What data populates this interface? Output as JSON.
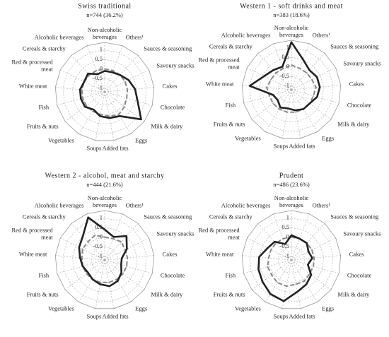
{
  "chart_data": [
    {
      "type": "radar",
      "title": "Swiss traditional",
      "subtitle": "n=744 (36.2%)",
      "categories": [
        "Non-alcoholic\nbeverages",
        "Others¹",
        "Sauces & seasoning",
        "Savoury snacks",
        "Cakes",
        "Chocolate",
        "Milk & dairy",
        "Eggs",
        "Added fats",
        "Soups",
        "Vegetables",
        "Fruits & nuts",
        "Fish",
        "White meat",
        "Red & processed\nmeat",
        "Cereals & starchy",
        "Alcoholic beverages"
      ],
      "series": [
        {
          "color": "#888888",
          "dashed": true,
          "values": [
            0,
            0,
            0,
            0,
            0,
            0,
            0.1,
            0.2,
            0.1,
            0,
            0,
            0,
            0,
            0,
            0,
            0,
            0
          ]
        },
        {
          "color": "#222222",
          "values": [
            -0.1,
            -0.1,
            0,
            0.2,
            0.4,
            0.6,
            1.2,
            0.3,
            0.2,
            0.1,
            -0.1,
            0.1,
            0.1,
            0.1,
            0,
            0.1,
            -0.2
          ]
        }
      ],
      "rlim": [
        -1.2,
        1.4
      ],
      "rticks": [
        1,
        0.5,
        0,
        -0.5,
        -1
      ]
    },
    {
      "type": "radar",
      "title": "Western 1 - soft drinks and meat",
      "subtitle": "n=383 (18.6%)",
      "categories": [
        "Non-alcoholic\nbeverages",
        "Others¹",
        "Sauces & seasoning",
        "Savoury snacks",
        "Cakes",
        "Chocolate",
        "Milk & dairy",
        "Eggs",
        "Added fats",
        "Soups",
        "Vegetables",
        "Fruits & nuts",
        "Fish",
        "White meat",
        "Red & processed\nmeat",
        "Cereals & starchy",
        "Alcoholic beverages"
      ],
      "series": [
        {
          "color": "#888888",
          "dashed": true,
          "values": [
            0.1,
            0,
            0,
            0,
            0.1,
            0,
            0,
            0,
            0,
            0,
            0,
            0,
            0,
            0.1,
            0,
            0,
            0
          ]
        },
        {
          "color": "#222222",
          "values": [
            1.3,
            0.5,
            0.2,
            0.3,
            0.3,
            0.2,
            0,
            0,
            -0.1,
            -0.2,
            -0.1,
            -0.3,
            -0.2,
            1.0,
            0.4,
            0.2,
            0.1
          ]
        }
      ],
      "rlim": [
        -1.2,
        1.4
      ],
      "rticks": [
        1,
        0.5,
        0,
        -0.5,
        -1
      ]
    },
    {
      "type": "radar",
      "title": "Western 2 - alcohol, meat and starchy",
      "subtitle": "n=444 (21.6%)",
      "categories": [
        "Non-alcoholic\nbeverages",
        "Others¹",
        "Sauces & seasoning",
        "Savoury snacks",
        "Cakes",
        "Chocolate",
        "Milk & dairy",
        "Eggs",
        "Added fats",
        "Soups",
        "Vegetables",
        "Fruits & nuts",
        "Fish",
        "White meat",
        "Red & processed\nmeat",
        "Cereals & starchy",
        "Alcoholic beverages"
      ],
      "series": [
        {
          "color": "#888888",
          "dashed": true,
          "values": [
            0,
            0,
            0.1,
            0,
            0,
            0,
            0,
            0,
            0,
            0,
            0,
            0,
            0,
            0,
            0.1,
            0.1,
            0.2
          ]
        },
        {
          "color": "#222222",
          "values": [
            0.4,
            0.1,
            0.5,
            0.1,
            -0.3,
            -0.3,
            -0.1,
            0.1,
            0.2,
            0.1,
            0,
            -0.1,
            0,
            0.1,
            0.3,
            0.5,
            1.2
          ]
        }
      ],
      "rlim": [
        -1.2,
        1.4
      ],
      "rticks": [
        1,
        0.5,
        0,
        -0.5,
        -1
      ]
    },
    {
      "type": "radar",
      "title": "Prudent",
      "subtitle": "n=486 (23.6%)",
      "categories": [
        "Non-alcoholic\nbeverages",
        "Others¹",
        "Sauces & seasoning",
        "Savoury snacks",
        "Cakes",
        "Chocolate",
        "Milk & dairy",
        "Eggs",
        "Added fats",
        "Soups",
        "Vegetables",
        "Fruits & nuts",
        "Fish",
        "White meat",
        "Red & processed\nmeat",
        "Cereals & starchy",
        "Alcoholic beverages"
      ],
      "series": [
        {
          "color": "#888888",
          "dashed": true,
          "values": [
            0,
            0,
            0,
            0,
            0,
            0,
            0,
            0.1,
            0.1,
            0.2,
            0.2,
            0.1,
            0.1,
            0,
            0,
            0,
            0
          ]
        },
        {
          "color": "#222222",
          "values": [
            0.1,
            0,
            0,
            -0.2,
            -0.1,
            -0.3,
            0.1,
            0.3,
            0.5,
            1.0,
            0.9,
            0.7,
            0.6,
            0.5,
            0.2,
            0.1,
            -0.3
          ]
        }
      ],
      "rlim": [
        -1.2,
        1.4
      ],
      "rticks": [
        1,
        0.5,
        0,
        -0.5,
        -1
      ]
    }
  ]
}
